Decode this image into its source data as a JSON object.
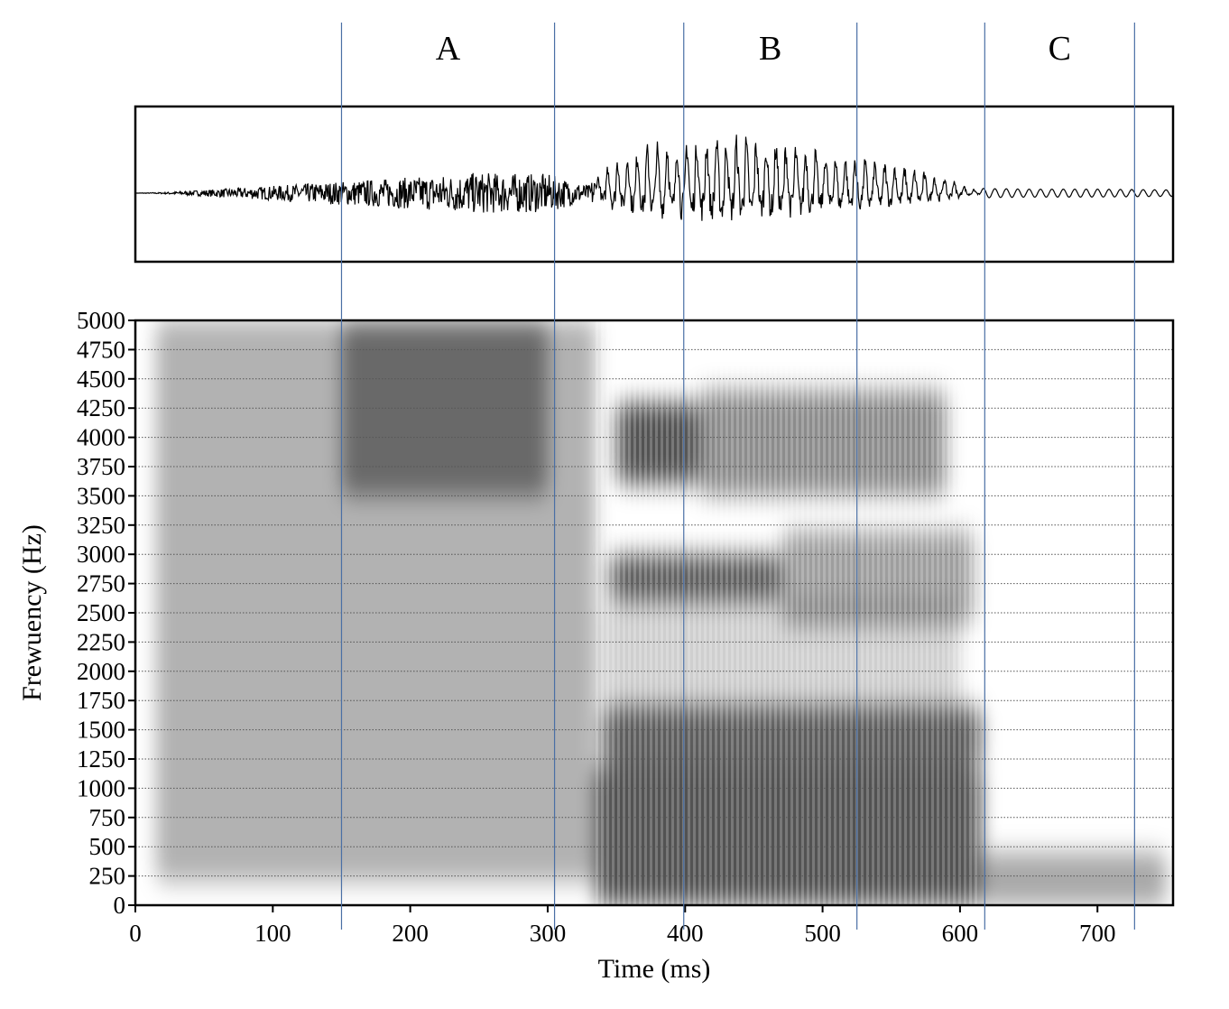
{
  "chart_data": [
    {
      "type": "line",
      "panel": "waveform",
      "xlim": [
        0,
        755
      ],
      "amplitude_envelope": [
        {
          "x": 0,
          "amp": 0.0
        },
        {
          "x": 20,
          "amp": 0.01
        },
        {
          "x": 50,
          "amp": 0.04
        },
        {
          "x": 100,
          "amp": 0.09
        },
        {
          "x": 150,
          "amp": 0.15
        },
        {
          "x": 200,
          "amp": 0.2
        },
        {
          "x": 250,
          "amp": 0.26
        },
        {
          "x": 300,
          "amp": 0.24
        },
        {
          "x": 330,
          "amp": 0.1
        },
        {
          "x": 345,
          "amp": 0.55
        },
        {
          "x": 370,
          "amp": 0.8
        },
        {
          "x": 400,
          "amp": 0.95
        },
        {
          "x": 430,
          "amp": 0.98
        },
        {
          "x": 460,
          "amp": 0.92
        },
        {
          "x": 500,
          "amp": 0.72
        },
        {
          "x": 550,
          "amp": 0.5
        },
        {
          "x": 590,
          "amp": 0.26
        },
        {
          "x": 610,
          "amp": 0.06
        },
        {
          "x": 650,
          "amp": 0.05
        },
        {
          "x": 700,
          "amp": 0.05
        },
        {
          "x": 755,
          "amp": 0.04
        }
      ]
    },
    {
      "type": "heatmap",
      "panel": "spectrogram",
      "xlabel": "Time (ms)",
      "ylabel": "Frewuency (Hz)",
      "xlim": [
        0,
        755
      ],
      "ylim": [
        0,
        5000
      ],
      "xticks": [
        "0",
        "100",
        "200",
        "300",
        "400",
        "500",
        "600",
        "700"
      ],
      "yticks": [
        "0",
        "250",
        "500",
        "750",
        "1000",
        "1250",
        "1500",
        "1750",
        "2000",
        "2250",
        "2500",
        "2750",
        "3000",
        "3250",
        "3500",
        "3750",
        "4000",
        "4250",
        "4500",
        "4750",
        "5000"
      ],
      "grid": "horizontal dotted at each y tick",
      "energy_regions": [
        {
          "t0": 15,
          "t1": 335,
          "f0": 200,
          "f1": 5000,
          "intensity": 0.4
        },
        {
          "t0": 150,
          "t1": 300,
          "f0": 3500,
          "f1": 5000,
          "intensity": 0.55
        },
        {
          "t0": 335,
          "t1": 615,
          "f0": 0,
          "f1": 1200,
          "intensity": 0.9
        },
        {
          "t0": 340,
          "t1": 615,
          "f0": 1200,
          "f1": 1700,
          "intensity": 0.85
        },
        {
          "t0": 345,
          "t1": 470,
          "f0": 2600,
          "f1": 3000,
          "intensity": 0.85
        },
        {
          "t0": 470,
          "t1": 610,
          "f0": 2400,
          "f1": 3200,
          "intensity": 0.5
        },
        {
          "t0": 350,
          "t1": 410,
          "f0": 3600,
          "f1": 4300,
          "intensity": 0.9
        },
        {
          "t0": 410,
          "t1": 590,
          "f0": 3500,
          "f1": 4400,
          "intensity": 0.6
        },
        {
          "t0": 340,
          "t1": 600,
          "f0": 1700,
          "f1": 2600,
          "intensity": 0.25
        },
        {
          "t0": 615,
          "t1": 750,
          "f0": 0,
          "f1": 450,
          "intensity": 0.45
        }
      ]
    }
  ],
  "segments": [
    {
      "label": "A",
      "start_ms": 150,
      "end_ms": 305
    },
    {
      "label": "B",
      "start_ms": 399,
      "end_ms": 525
    },
    {
      "label": "C",
      "start_ms": 618,
      "end_ms": 727
    }
  ],
  "colors": {
    "boundary_line": "#4a6fa5",
    "frame": "#000000",
    "grid": "#555555",
    "waveform": "#000000"
  }
}
